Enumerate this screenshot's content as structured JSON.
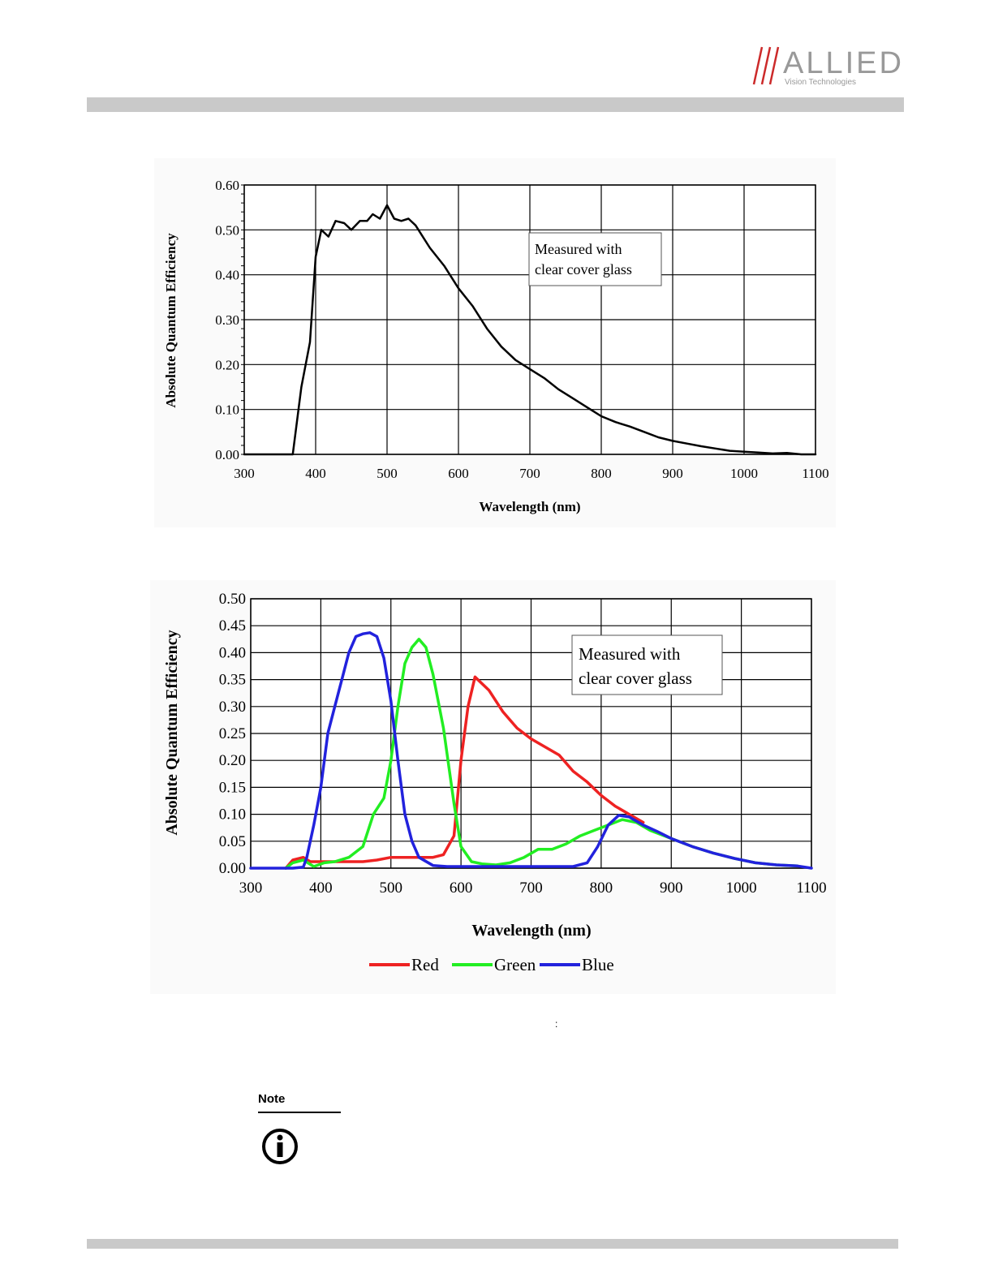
{
  "logo": {
    "brand": "ALLIED",
    "tagline": "Vision Technologies"
  },
  "caption_colon": ":",
  "note": {
    "label": "Note",
    "icon": "info-icon"
  },
  "chart_data": [
    {
      "type": "line",
      "xlabel": "Wavelength (nm)",
      "ylabel": "Absolute Quantum Efficiency",
      "xlim": [
        300,
        1100
      ],
      "ylim": [
        0,
        0.6
      ],
      "xticks": [
        "300",
        "400",
        "500",
        "600",
        "700",
        "800",
        "900",
        "1000",
        "1100"
      ],
      "yticks": [
        "0.00",
        "0.10",
        "0.20",
        "0.30",
        "0.40",
        "0.50",
        "0.60"
      ],
      "grid": true,
      "annotation": [
        "Measured with",
        "clear cover glass"
      ],
      "series": [
        {
          "color": "#000000",
          "points": [
            [
              300,
              0
            ],
            [
              368,
              0
            ],
            [
              380,
              0.15
            ],
            [
              392,
              0.25
            ],
            [
              400,
              0.44
            ],
            [
              408,
              0.5
            ],
            [
              418,
              0.485
            ],
            [
              428,
              0.52
            ],
            [
              440,
              0.515
            ],
            [
              450,
              0.5
            ],
            [
              462,
              0.52
            ],
            [
              472,
              0.52
            ],
            [
              480,
              0.535
            ],
            [
              490,
              0.525
            ],
            [
              500,
              0.555
            ],
            [
              510,
              0.525
            ],
            [
              520,
              0.52
            ],
            [
              530,
              0.525
            ],
            [
              540,
              0.51
            ],
            [
              560,
              0.46
            ],
            [
              580,
              0.42
            ],
            [
              600,
              0.37
            ],
            [
              620,
              0.33
            ],
            [
              640,
              0.28
            ],
            [
              660,
              0.24
            ],
            [
              680,
              0.21
            ],
            [
              700,
              0.19
            ],
            [
              720,
              0.17
            ],
            [
              740,
              0.145
            ],
            [
              760,
              0.125
            ],
            [
              780,
              0.105
            ],
            [
              800,
              0.085
            ],
            [
              820,
              0.072
            ],
            [
              840,
              0.062
            ],
            [
              860,
              0.05
            ],
            [
              880,
              0.038
            ],
            [
              900,
              0.03
            ],
            [
              920,
              0.024
            ],
            [
              940,
              0.018
            ],
            [
              960,
              0.013
            ],
            [
              980,
              0.008
            ],
            [
              1000,
              0.006
            ],
            [
              1020,
              0.004
            ],
            [
              1040,
              0.002
            ],
            [
              1060,
              0.003
            ],
            [
              1080,
              0.0
            ],
            [
              1100,
              0.0
            ]
          ]
        }
      ]
    },
    {
      "type": "line",
      "xlabel": "Wavelength (nm)",
      "ylabel": "Absolute Quantum Efficiency",
      "xlim": [
        300,
        1100
      ],
      "ylim": [
        0,
        0.5
      ],
      "xticks": [
        "300",
        "400",
        "500",
        "600",
        "700",
        "800",
        "900",
        "1000",
        "1100"
      ],
      "yticks": [
        "0.00",
        "0.05",
        "0.10",
        "0.15",
        "0.20",
        "0.25",
        "0.30",
        "0.35",
        "0.40",
        "0.45",
        "0.50"
      ],
      "grid": true,
      "legend_position": "bottom",
      "annotation": [
        "Measured with",
        "clear cover glass"
      ],
      "series": [
        {
          "name": "Red",
          "color": "#ee2222",
          "points": [
            [
              350,
              0.0
            ],
            [
              360,
              0.015
            ],
            [
              375,
              0.02
            ],
            [
              385,
              0.012
            ],
            [
              400,
              0.012
            ],
            [
              420,
              0.012
            ],
            [
              440,
              0.012
            ],
            [
              460,
              0.012
            ],
            [
              480,
              0.015
            ],
            [
              500,
              0.02
            ],
            [
              520,
              0.02
            ],
            [
              540,
              0.02
            ],
            [
              560,
              0.02
            ],
            [
              575,
              0.025
            ],
            [
              590,
              0.06
            ],
            [
              600,
              0.2
            ],
            [
              610,
              0.3
            ],
            [
              620,
              0.355
            ],
            [
              640,
              0.33
            ],
            [
              660,
              0.29
            ],
            [
              680,
              0.26
            ],
            [
              700,
              0.24
            ],
            [
              720,
              0.225
            ],
            [
              740,
              0.21
            ],
            [
              760,
              0.18
            ],
            [
              780,
              0.16
            ],
            [
              800,
              0.135
            ],
            [
              820,
              0.115
            ],
            [
              840,
              0.1
            ],
            [
              860,
              0.085
            ]
          ]
        },
        {
          "name": "Green",
          "color": "#22ee22",
          "points": [
            [
              350,
              0.0
            ],
            [
              360,
              0.01
            ],
            [
              375,
              0.015
            ],
            [
              390,
              0.003
            ],
            [
              405,
              0.01
            ],
            [
              420,
              0.012
            ],
            [
              440,
              0.02
            ],
            [
              460,
              0.04
            ],
            [
              475,
              0.1
            ],
            [
              490,
              0.13
            ],
            [
              500,
              0.2
            ],
            [
              510,
              0.3
            ],
            [
              520,
              0.38
            ],
            [
              530,
              0.41
            ],
            [
              540,
              0.425
            ],
            [
              550,
              0.41
            ],
            [
              560,
              0.36
            ],
            [
              575,
              0.26
            ],
            [
              590,
              0.12
            ],
            [
              600,
              0.04
            ],
            [
              615,
              0.012
            ],
            [
              630,
              0.008
            ],
            [
              650,
              0.006
            ],
            [
              670,
              0.01
            ],
            [
              690,
              0.02
            ],
            [
              710,
              0.035
            ],
            [
              730,
              0.035
            ],
            [
              750,
              0.045
            ],
            [
              770,
              0.06
            ],
            [
              790,
              0.07
            ],
            [
              810,
              0.08
            ],
            [
              830,
              0.09
            ],
            [
              850,
              0.085
            ],
            [
              870,
              0.07
            ],
            [
              900,
              0.055
            ],
            [
              930,
              0.04
            ],
            [
              960,
              0.028
            ],
            [
              990,
              0.018
            ],
            [
              1020,
              0.01
            ],
            [
              1050,
              0.006
            ],
            [
              1080,
              0.004
            ]
          ]
        },
        {
          "name": "Blue",
          "color": "#2222dd",
          "points": [
            [
              300,
              0.0
            ],
            [
              360,
              0.0
            ],
            [
              375,
              0.002
            ],
            [
              380,
              0.02
            ],
            [
              390,
              0.08
            ],
            [
              400,
              0.15
            ],
            [
              410,
              0.25
            ],
            [
              420,
              0.3
            ],
            [
              430,
              0.35
            ],
            [
              440,
              0.4
            ],
            [
              450,
              0.43
            ],
            [
              460,
              0.435
            ],
            [
              470,
              0.437
            ],
            [
              480,
              0.43
            ],
            [
              490,
              0.39
            ],
            [
              500,
              0.31
            ],
            [
              510,
              0.2
            ],
            [
              520,
              0.1
            ],
            [
              530,
              0.05
            ],
            [
              540,
              0.02
            ],
            [
              560,
              0.005
            ],
            [
              580,
              0.003
            ],
            [
              600,
              0.003
            ],
            [
              700,
              0.003
            ],
            [
              760,
              0.003
            ],
            [
              780,
              0.01
            ],
            [
              795,
              0.04
            ],
            [
              810,
              0.08
            ],
            [
              825,
              0.098
            ],
            [
              840,
              0.095
            ],
            [
              860,
              0.08
            ],
            [
              880,
              0.068
            ],
            [
              900,
              0.055
            ],
            [
              930,
              0.04
            ],
            [
              960,
              0.028
            ],
            [
              990,
              0.018
            ],
            [
              1020,
              0.01
            ],
            [
              1050,
              0.006
            ],
            [
              1080,
              0.004
            ],
            [
              1100,
              0.0
            ]
          ]
        }
      ]
    }
  ]
}
